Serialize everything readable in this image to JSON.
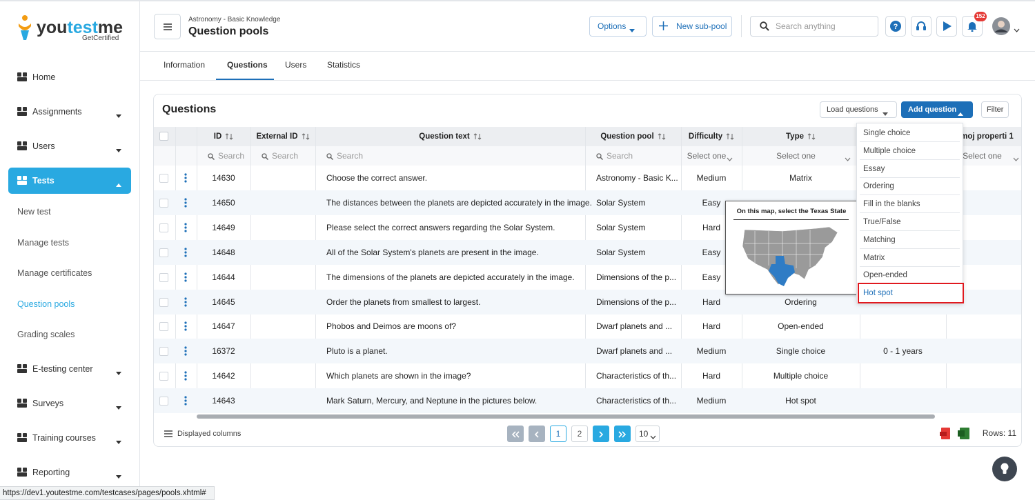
{
  "logo": {
    "parts": [
      "you",
      "test",
      "me"
    ],
    "tagline": "GetCertified"
  },
  "sidebar": {
    "items": [
      {
        "label": "Home",
        "caret": false
      },
      {
        "label": "Assignments",
        "caret": true
      },
      {
        "label": "Users",
        "caret": true
      },
      {
        "label": "Tests",
        "caret": true,
        "active": true,
        "children": [
          {
            "label": "New test"
          },
          {
            "label": "Manage tests"
          },
          {
            "label": "Manage certificates"
          },
          {
            "label": "Question pools",
            "current": true
          },
          {
            "label": "Grading scales"
          }
        ]
      },
      {
        "label": "E-testing center",
        "caret": true
      },
      {
        "label": "Surveys",
        "caret": true
      },
      {
        "label": "Training courses",
        "caret": true
      },
      {
        "label": "Reporting",
        "caret": true
      }
    ]
  },
  "header": {
    "breadcrumb": "Astronomy - Basic Knowledge",
    "title": "Question pools",
    "options": "Options",
    "new_subpool": "New sub-pool",
    "search_placeholder": "Search anything",
    "notifications": 152
  },
  "tabs": {
    "items": [
      "Information",
      "Questions",
      "Users",
      "Statistics"
    ],
    "active": 1
  },
  "panel": {
    "title": "Questions",
    "load": "Load questions",
    "add": "Add question",
    "filter": "Filter"
  },
  "table": {
    "columns": [
      {
        "label": "ID",
        "filter": "Search"
      },
      {
        "label": "External ID",
        "filter": "Search"
      },
      {
        "label": "Question text",
        "filter": "Search"
      },
      {
        "label": "Question pool",
        "filter": "Search"
      },
      {
        "label": "Difficulty",
        "filter": "Select one"
      },
      {
        "label": "Type",
        "filter": "Select one"
      },
      {
        "label": null,
        "filter": null
      },
      {
        "label": "moj properti 1",
        "filter": "Select one"
      }
    ],
    "rows": [
      [
        14630,
        null,
        "Choose the correct answer.",
        "Astronomy - Basic K...",
        "Medium",
        "Matrix",
        null,
        null
      ],
      [
        14650,
        null,
        "The distances between the planets are depicted accurately in the image.",
        "Solar System",
        "Easy",
        null,
        null,
        null
      ],
      [
        14649,
        null,
        "Please select the correct answers regarding the Solar System.",
        "Solar System",
        "Hard",
        null,
        null,
        null
      ],
      [
        14648,
        null,
        "All of the Solar System's planets are present in the image.",
        "Solar System",
        "Easy",
        null,
        null,
        null
      ],
      [
        14644,
        null,
        "The dimensions of the planets are depicted accurately in the image.",
        "Dimensions of the p...",
        "Easy",
        null,
        null,
        null
      ],
      [
        14645,
        null,
        "Order the planets from smallest to largest.",
        "Dimensions of the p...",
        "Hard",
        "Ordering",
        null,
        null
      ],
      [
        14647,
        null,
        "Phobos and Deimos are moons of?",
        "Dwarf planets and ...",
        "Hard",
        "Open-ended",
        null,
        null
      ],
      [
        16372,
        null,
        "Pluto is a planet.",
        "Dwarf planets and ...",
        "Medium",
        "Single choice",
        "0 - 1 years",
        null
      ],
      [
        14642,
        null,
        "Which planets are shown in the image?",
        "Characteristics of th...",
        "Hard",
        "Multiple choice",
        null,
        null
      ],
      [
        14643,
        null,
        "Mark Saturn, Mercury, and Neptune in the pictures below.",
        "Characteristics of th...",
        "Medium",
        "Hot spot",
        null,
        null
      ]
    ]
  },
  "dropdown": {
    "items": [
      "Single choice",
      "Multiple choice",
      "Essay",
      "Ordering",
      "Fill in the blanks",
      "True/False",
      "Matching",
      "Matrix",
      "Open-ended",
      "Hot spot"
    ],
    "highlighted": 9
  },
  "tooltip": {
    "title": "On this map, select the Texas State"
  },
  "footer": {
    "displayed_columns": "Displayed columns",
    "pages": [
      1,
      2
    ],
    "current_page": 1,
    "page_size": 10,
    "rows_label": "Rows: 11"
  },
  "status_url": "https://dev1.youtestme.com/testcases/pages/pools.xhtml#"
}
